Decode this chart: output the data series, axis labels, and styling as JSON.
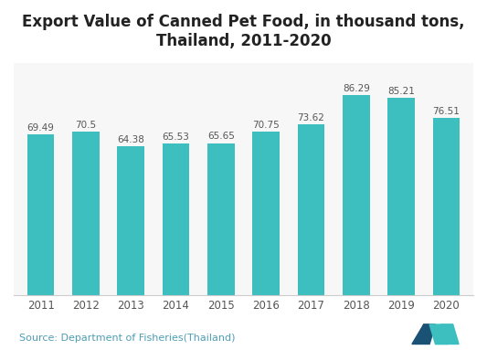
{
  "title": "Export Value of Canned Pet Food, in thousand tons,\nThailand, 2011-2020",
  "categories": [
    "2011",
    "2012",
    "2013",
    "2014",
    "2015",
    "2016",
    "2017",
    "2018",
    "2019",
    "2020"
  ],
  "values": [
    69.49,
    70.5,
    64.38,
    65.53,
    65.65,
    70.75,
    73.62,
    86.29,
    85.21,
    76.51
  ],
  "bar_color": "#3dbfbf",
  "background_color": "#ffffff",
  "chart_bg_color": "#f7f7f7",
  "title_fontsize": 12,
  "label_fontsize": 7.5,
  "tick_fontsize": 8.5,
  "source_text": "Source: Department of Fisheries(Thailand)",
  "source_fontsize": 8,
  "source_color": "#4e9db5",
  "ylim": [
    0,
    100
  ],
  "value_label_color": "#555555",
  "border_color": "#cccccc",
  "logo_color_dark": "#1a5276",
  "logo_color_light": "#3dbfbf"
}
